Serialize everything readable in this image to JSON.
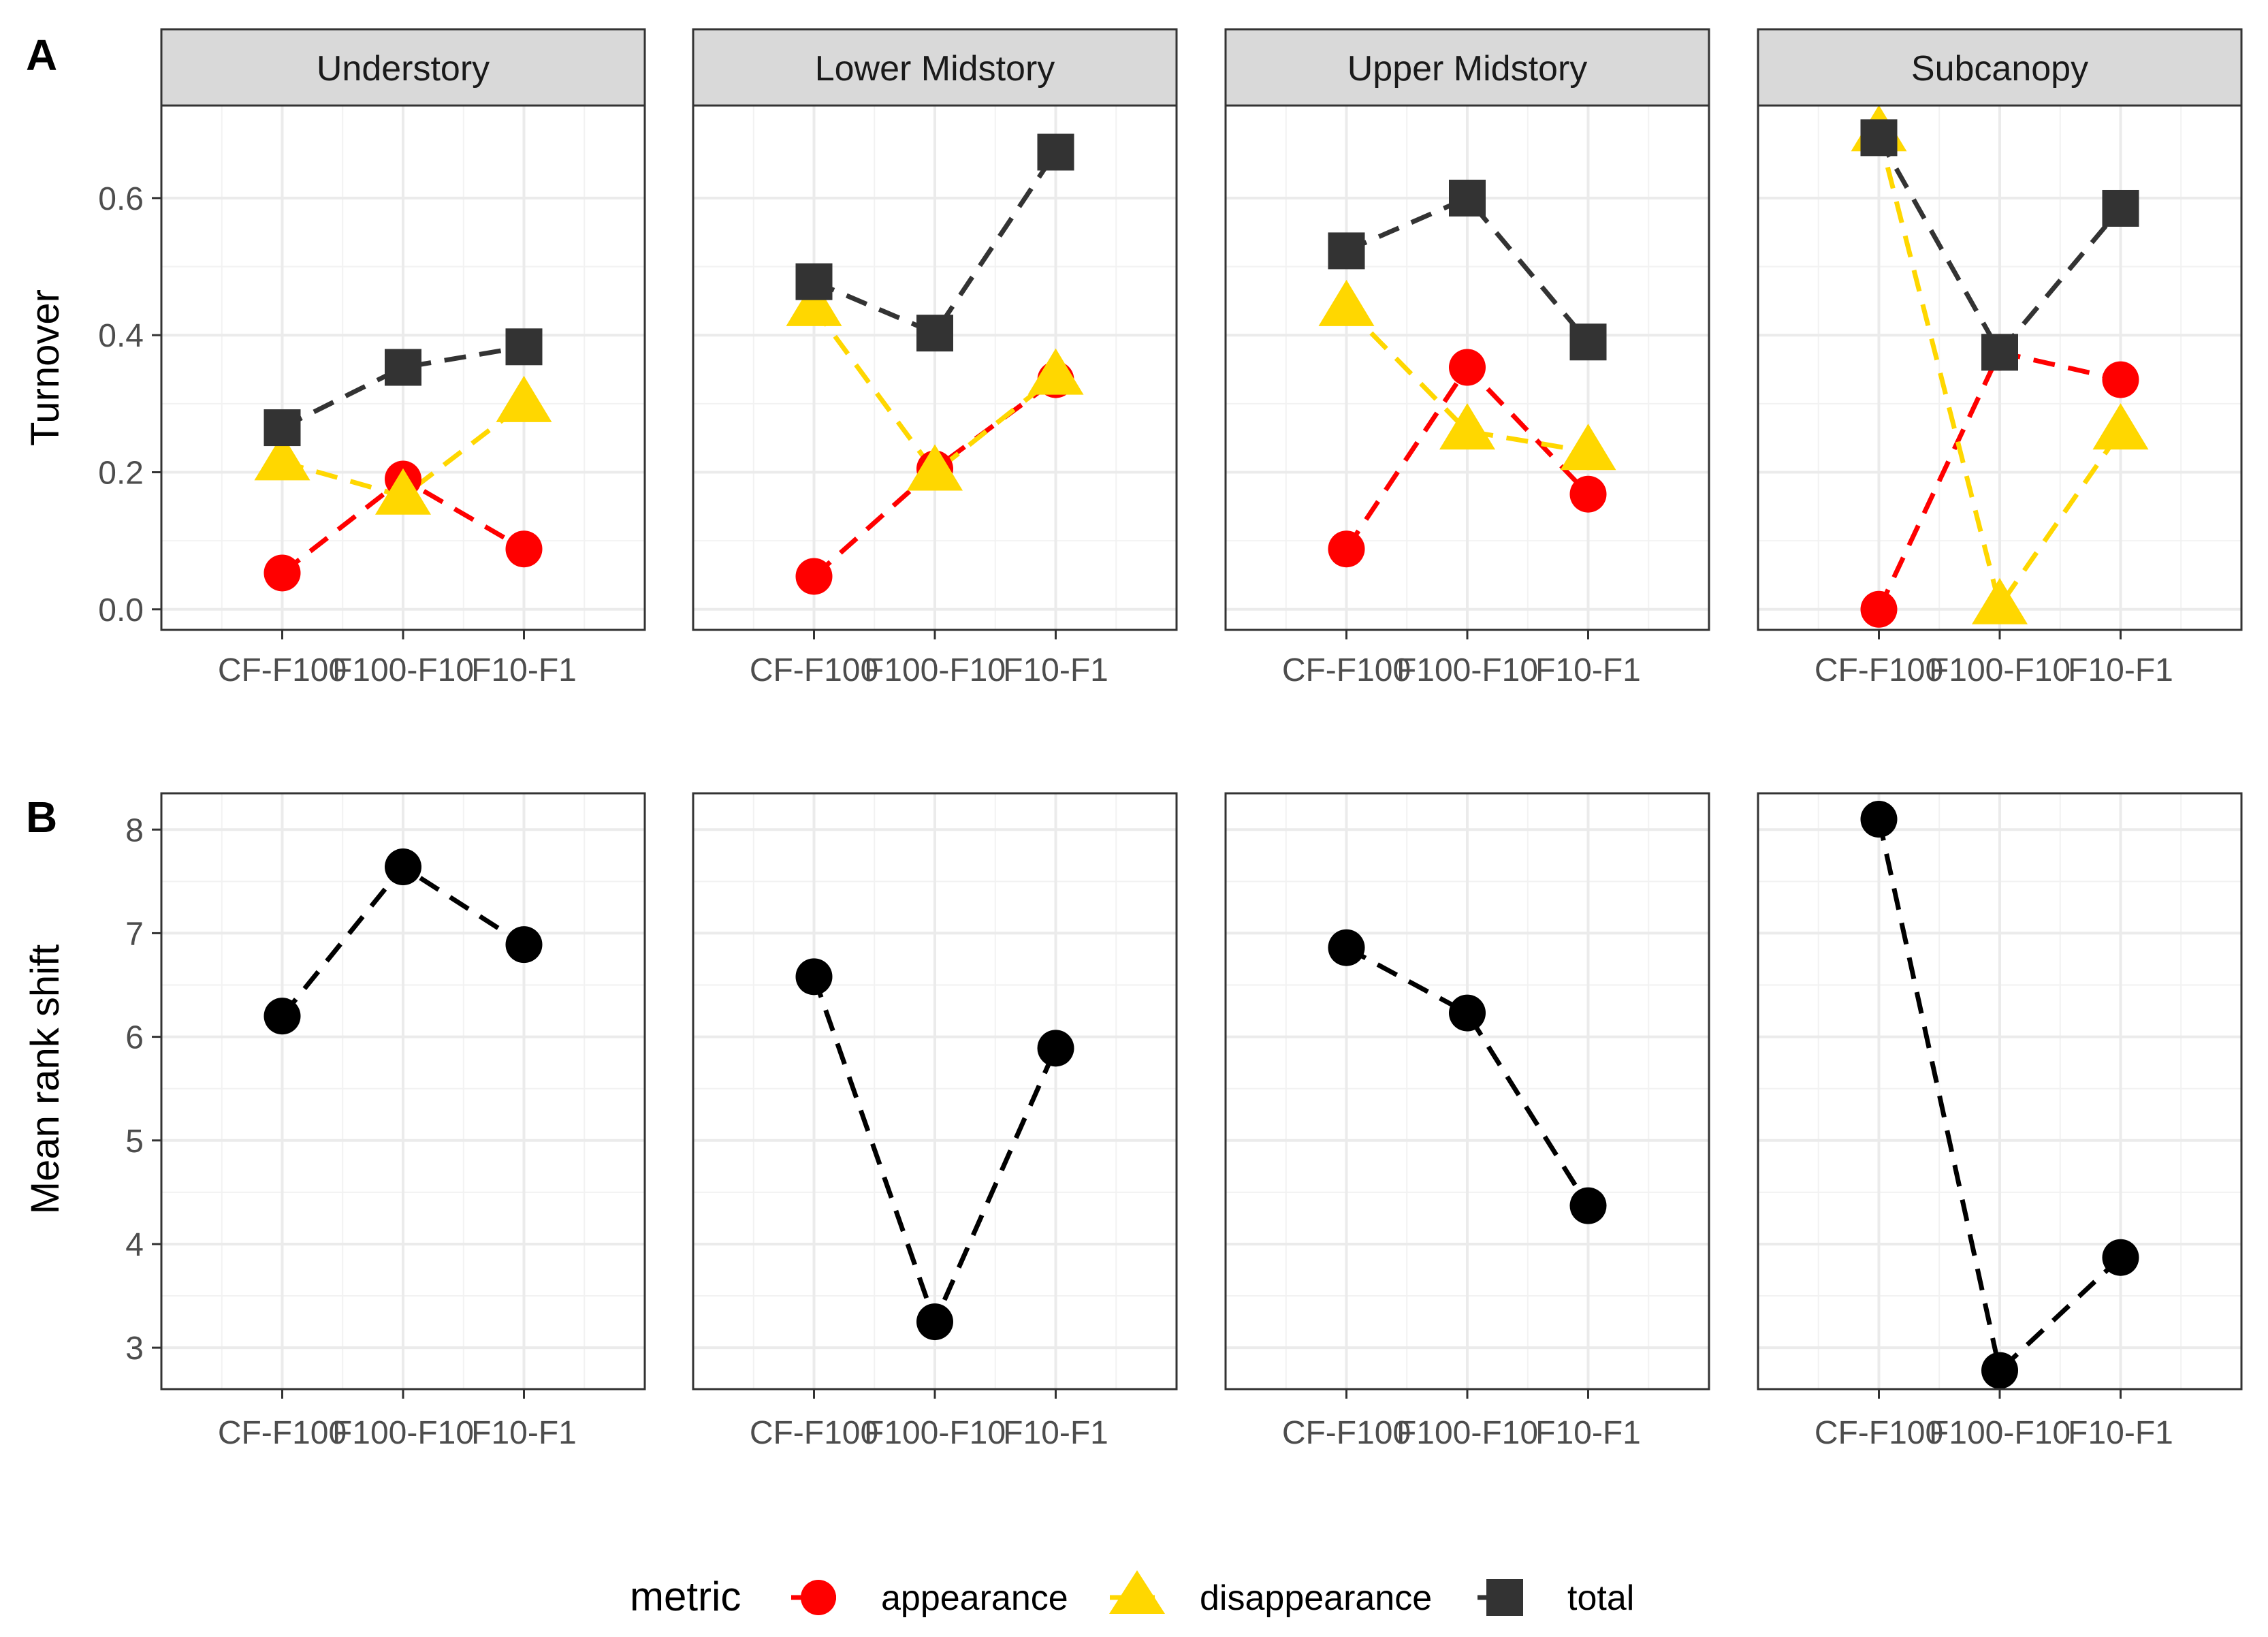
{
  "panel_labels": {
    "a": "A",
    "b": "B"
  },
  "categories": [
    "CF-F100",
    "F100-F10",
    "F10-F1"
  ],
  "facets": [
    "Understory",
    "Lower Midstory",
    "Upper Midstory",
    "Subcanopy"
  ],
  "legend": {
    "title": "metric",
    "items": [
      {
        "name": "appearance",
        "color": "#ff0000",
        "shape": "circle"
      },
      {
        "name": "disappearance",
        "color": "#ffd700",
        "shape": "triangle"
      },
      {
        "name": "total",
        "color": "#333333",
        "shape": "square"
      }
    ]
  },
  "chart_data": [
    {
      "type": "line",
      "panel": "A",
      "ylabel": "Turnover",
      "xlabel": "",
      "ylim": [
        -0.03,
        0.735
      ],
      "yticks": [
        0.0,
        0.2,
        0.4,
        0.6
      ],
      "ytick_labels": [
        "0.0",
        "0.2",
        "0.4",
        "0.6"
      ],
      "categories": [
        "CF-F100",
        "F100-F10",
        "F10-F1"
      ],
      "facets": [
        {
          "name": "Understory",
          "series": [
            {
              "name": "appearance",
              "values": [
                0.053,
                0.19,
                0.088
              ]
            },
            {
              "name": "disappearance",
              "values": [
                0.215,
                0.165,
                0.3
              ]
            },
            {
              "name": "total",
              "values": [
                0.265,
                0.353,
                0.383
              ]
            }
          ]
        },
        {
          "name": "Lower Midstory",
          "series": [
            {
              "name": "appearance",
              "values": [
                0.048,
                0.205,
                0.335
              ]
            },
            {
              "name": "disappearance",
              "values": [
                0.44,
                0.2,
                0.34
              ]
            },
            {
              "name": "total",
              "values": [
                0.478,
                0.403,
                0.667
              ]
            }
          ]
        },
        {
          "name": "Upper Midstory",
          "series": [
            {
              "name": "appearance",
              "values": [
                0.088,
                0.353,
                0.168
              ]
            },
            {
              "name": "disappearance",
              "values": [
                0.44,
                0.26,
                0.23
              ]
            },
            {
              "name": "total",
              "values": [
                0.523,
                0.6,
                0.39
              ]
            }
          ]
        },
        {
          "name": "Subcanopy",
          "series": [
            {
              "name": "appearance",
              "values": [
                0.0,
                0.375,
                0.335
              ]
            },
            {
              "name": "disappearance",
              "values": [
                0.695,
                0.005,
                0.26
              ]
            },
            {
              "name": "total",
              "values": [
                0.688,
                0.375,
                0.585
              ]
            }
          ]
        }
      ]
    },
    {
      "type": "line",
      "panel": "B",
      "ylabel": "Mean rank shift",
      "xlabel": "",
      "ylim": [
        2.6,
        8.35
      ],
      "yticks": [
        3,
        4,
        5,
        6,
        7,
        8
      ],
      "ytick_labels": [
        "3",
        "4",
        "5",
        "6",
        "7",
        "8"
      ],
      "categories": [
        "CF-F100",
        "F100-F10",
        "F10-F1"
      ],
      "facets": [
        {
          "name": "Understory",
          "series": [
            {
              "name": "mean rank shift",
              "values": [
                6.2,
                7.64,
                6.89
              ]
            }
          ]
        },
        {
          "name": "Lower Midstory",
          "series": [
            {
              "name": "mean rank shift",
              "values": [
                6.58,
                3.25,
                5.89
              ]
            }
          ]
        },
        {
          "name": "Upper Midstory",
          "series": [
            {
              "name": "mean rank shift",
              "values": [
                6.86,
                6.23,
                4.37
              ]
            }
          ]
        },
        {
          "name": "Subcanopy",
          "series": [
            {
              "name": "mean rank shift",
              "values": [
                8.1,
                2.78,
                3.87
              ]
            }
          ]
        }
      ]
    }
  ]
}
